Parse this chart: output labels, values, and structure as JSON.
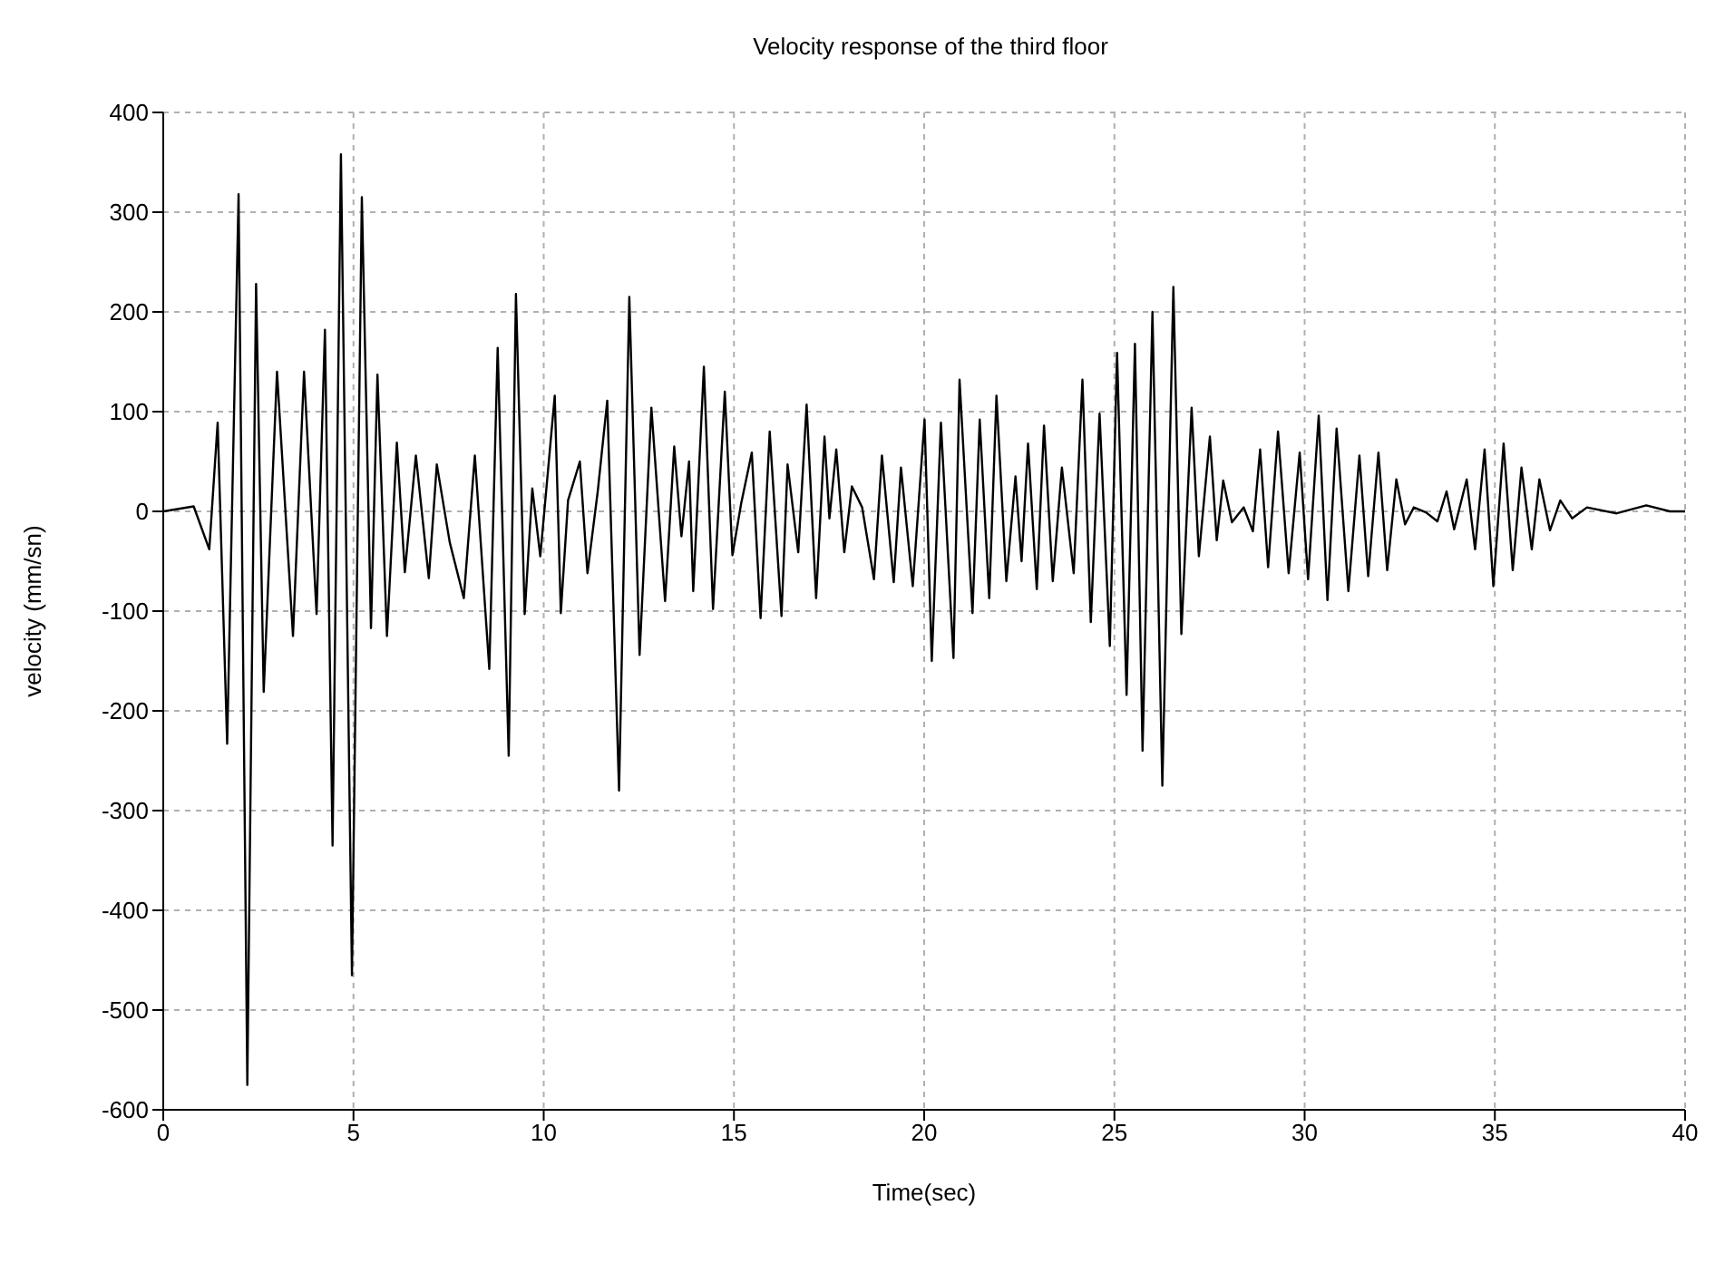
{
  "chart_data": {
    "type": "line",
    "title": "Velocity response of the third floor",
    "xlabel": "Time(sec)",
    "ylabel": "velocity (mm/sn)",
    "xlim": [
      0,
      40
    ],
    "xticks": [
      0,
      5,
      10,
      15,
      20,
      25,
      30,
      35,
      40
    ],
    "ylim": [
      -600,
      400
    ],
    "yticks": [
      -600,
      -500,
      -400,
      -300,
      -200,
      -100,
      0,
      100,
      200,
      300,
      400
    ],
    "grid": true,
    "legend": false,
    "marker": "none",
    "line_style": "solid",
    "x": [
      0,
      0.8,
      1.21,
      1.43,
      1.68,
      1.98,
      2.21,
      2.44,
      2.64,
      2.99,
      3.41,
      3.7,
      4.03,
      4.25,
      4.45,
      4.67,
      4.96,
      5.22,
      5.46,
      5.63,
      5.88,
      6.14,
      6.35,
      6.64,
      6.98,
      7.19,
      7.53,
      7.9,
      8.19,
      8.57,
      8.79,
      9.08,
      9.27,
      9.5,
      9.7,
      9.91,
      10.29,
      10.45,
      10.64,
      10.95,
      11.15,
      11.42,
      11.67,
      11.98,
      12.25,
      12.52,
      12.83,
      13.19,
      13.43,
      13.62,
      13.82,
      13.93,
      14.21,
      14.45,
      14.76,
      14.96,
      15.19,
      15.47,
      15.7,
      15.94,
      16.25,
      16.41,
      16.69,
      16.91,
      17.16,
      17.38,
      17.51,
      17.69,
      17.9,
      18.1,
      18.37,
      18.68,
      18.89,
      19.2,
      19.39,
      19.7,
      20.01,
      20.2,
      20.44,
      20.77,
      20.93,
      21.27,
      21.46,
      21.71,
      21.9,
      22.16,
      22.4,
      22.56,
      22.73,
      22.96,
      23.15,
      23.38,
      23.62,
      23.93,
      24.16,
      24.38,
      24.61,
      24.88,
      25.07,
      25.32,
      25.54,
      25.74,
      26.0,
      26.26,
      26.55,
      26.76,
      27.03,
      27.22,
      27.51,
      27.69,
      27.86,
      28.09,
      28.4,
      28.64,
      28.83,
      29.04,
      29.3,
      29.58,
      29.87,
      30.09,
      30.37,
      30.6,
      30.84,
      31.15,
      31.44,
      31.67,
      31.94,
      32.17,
      32.41,
      32.64,
      32.87,
      33.19,
      33.49,
      33.73,
      33.93,
      34.26,
      34.48,
      34.73,
      34.96,
      35.23,
      35.47,
      35.7,
      35.97,
      36.17,
      36.45,
      36.72,
      37.03,
      37.42,
      38.2,
      38.98,
      39.6,
      40
    ],
    "series": [
      {
        "color": "#000000",
        "values": [
          0,
          5,
          -38,
          89,
          -233,
          318,
          -575,
          228,
          -181,
          140,
          -125,
          140,
          -103,
          182,
          -335,
          358,
          -465,
          315,
          -117,
          137,
          -125,
          69,
          -61,
          56,
          -67,
          47,
          -31,
          -87,
          56,
          -158,
          164,
          -245,
          218,
          -103,
          23,
          -45,
          116,
          -102,
          11,
          50,
          -62,
          20,
          111,
          -280,
          215,
          -144,
          104,
          -90,
          65,
          -25,
          50,
          -80,
          145,
          -98,
          120,
          -44,
          8,
          59,
          -107,
          80,
          -105,
          47,
          -41,
          107,
          -87,
          75,
          -7,
          62,
          -41,
          25,
          4,
          -68,
          56,
          -71,
          44,
          -75,
          92,
          -150,
          89,
          -147,
          132,
          -102,
          92,
          -87,
          116,
          -70,
          35,
          -50,
          68,
          -78,
          86,
          -70,
          44,
          -62,
          132,
          -111,
          98,
          -135,
          159,
          -184,
          168,
          -240,
          200,
          -275,
          225,
          -123,
          104,
          -45,
          75,
          -29,
          31,
          -11,
          4,
          -20,
          62,
          -56,
          80,
          -62,
          59,
          -68,
          96,
          -89,
          83,
          -80,
          56,
          -65,
          59,
          -59,
          32,
          -13,
          4,
          -1,
          -10,
          20,
          -18,
          32,
          -38,
          62,
          -75,
          68,
          -59,
          44,
          -38,
          32,
          -19,
          11,
          -7,
          4,
          -2,
          6,
          0,
          0
        ]
      }
    ]
  }
}
